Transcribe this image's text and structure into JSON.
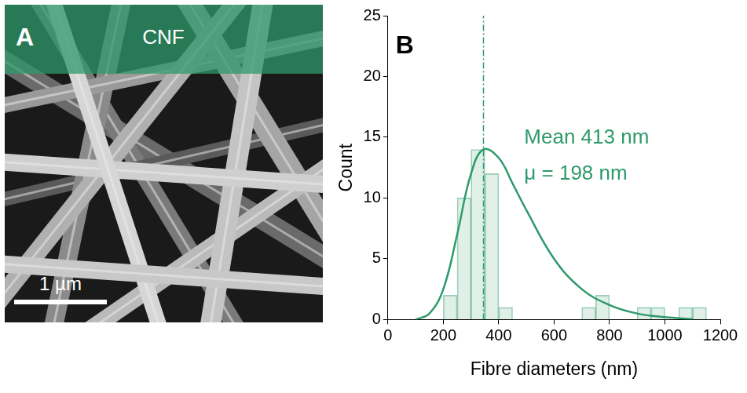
{
  "panel_a": {
    "letter": "A",
    "label": "CNF",
    "scale_bar": "1 µm"
  },
  "chart_data": {
    "type": "histogram",
    "letter": "B",
    "bins": [
      200,
      250,
      300,
      350,
      400,
      450,
      500,
      550,
      600,
      650,
      700,
      750,
      800,
      850,
      900,
      950,
      1000,
      1050,
      1100,
      1150
    ],
    "counts": [
      2,
      10,
      14,
      12,
      1,
      0,
      0,
      0,
      0,
      0,
      1,
      2,
      0,
      0,
      1,
      1,
      0,
      1,
      1
    ],
    "color": "#2e9a6b",
    "fit": {
      "x": [
        100,
        150,
        200,
        250,
        300,
        345,
        400,
        450,
        500,
        600,
        700,
        800,
        900,
        1000,
        1100
      ],
      "values": [
        0,
        0.5,
        2.5,
        7,
        12,
        14,
        13.3,
        11.2,
        9,
        5,
        2.5,
        1.2,
        0.5,
        0.2,
        0.05
      ]
    },
    "vline": 345,
    "annotations": [
      "Mean 413 nm",
      "μ = 198 nm"
    ],
    "x_label": "Fibre diameters (nm)",
    "y_label": "Count",
    "xlim": [
      0,
      1200
    ],
    "xticks": [
      0,
      200,
      400,
      600,
      800,
      1000,
      1200
    ],
    "ylim": [
      0,
      25
    ],
    "yticks": [
      0,
      5,
      10,
      15,
      20,
      25
    ],
    "grid": false
  }
}
